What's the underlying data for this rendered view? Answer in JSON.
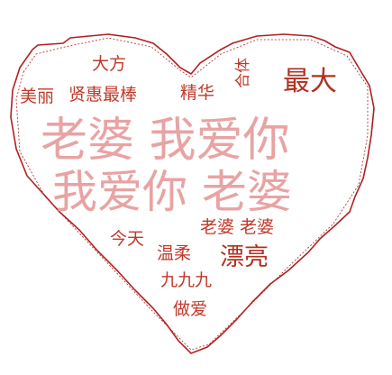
{
  "words": [
    {
      "id": "dafang",
      "text": "大方",
      "color": "#c0392b"
    },
    {
      "id": "meili",
      "text": "美丽",
      "color": "#c0392b"
    },
    {
      "id": "xianhui",
      "text": "贤惠最棒",
      "color": "#c0392b"
    },
    {
      "id": "jinghua",
      "text": "精华",
      "color": "#c0392b"
    },
    {
      "id": "heti",
      "text": "合体",
      "color": "#c0392b"
    },
    {
      "id": "zuida",
      "text": "最大",
      "color": "#b03020"
    },
    {
      "id": "laopo_woaini",
      "text": "老婆 我爱你",
      "color": "#e8a3a3"
    },
    {
      "id": "woaini_laopo",
      "text": "我爱你 老婆",
      "color": "#e8a3a3"
    },
    {
      "id": "laopo_laopo",
      "text": "老婆 老婆",
      "color": "#c0392b"
    },
    {
      "id": "jintian",
      "text": "今天",
      "color": "#c0392b"
    },
    {
      "id": "wenrou",
      "text": "温柔",
      "color": "#c0392b"
    },
    {
      "id": "piaoliang",
      "text": "漂亮",
      "color": "#b03020"
    },
    {
      "id": "jiujiujiu",
      "text": "九九九",
      "color": "#c0392b"
    },
    {
      "id": "zuoai",
      "text": "做爱",
      "color": "#c0392b"
    }
  ],
  "outline_color": "#b02020"
}
